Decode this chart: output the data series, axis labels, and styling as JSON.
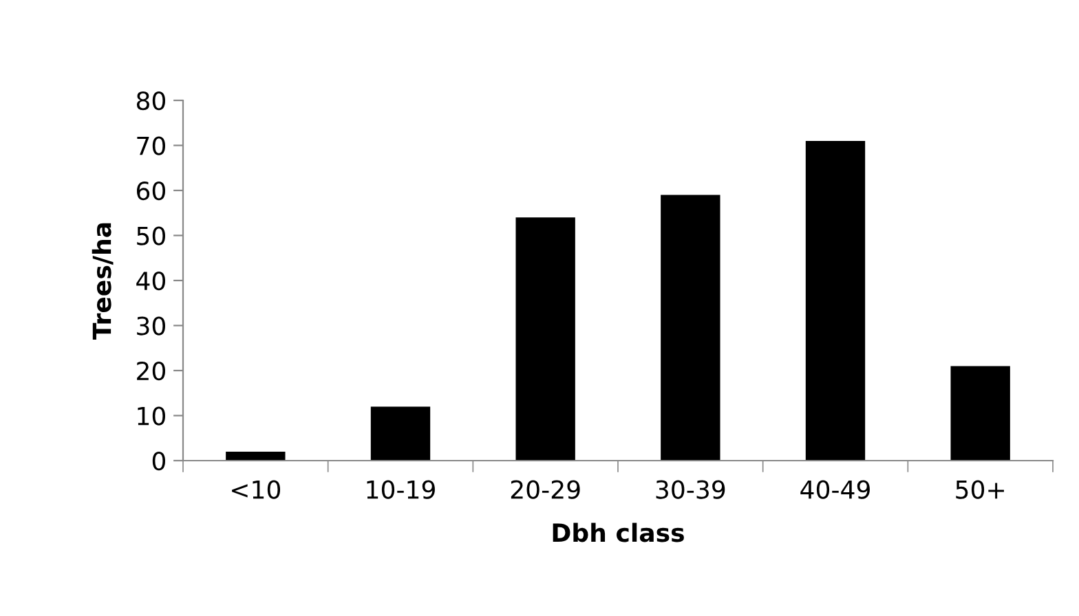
{
  "chart_data": {
    "type": "bar",
    "xlabel": "Dbh class",
    "ylabel": "Trees/ha",
    "categories": [
      "<10",
      "10-19",
      "20-29",
      "30-39",
      "40-49",
      "50+"
    ],
    "values": [
      2,
      12,
      54,
      59,
      71,
      21
    ],
    "color": "#000000",
    "ylim": [
      0,
      80
    ],
    "yticks": [
      0,
      10,
      20,
      30,
      40,
      50,
      60,
      70,
      80
    ],
    "grid": false,
    "legend": false
  }
}
